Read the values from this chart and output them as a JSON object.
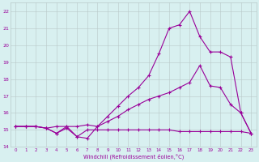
{
  "xlabel": "Windchill (Refroidissement éolien,°C)",
  "x": [
    0,
    1,
    2,
    3,
    4,
    5,
    6,
    7,
    8,
    9,
    10,
    11,
    12,
    13,
    14,
    15,
    16,
    17,
    18,
    19,
    20,
    21,
    22,
    23
  ],
  "line_flat": [
    15.2,
    15.2,
    15.2,
    15.1,
    14.8,
    15.1,
    14.6,
    15.0,
    15.0,
    15.0,
    15.0,
    15.0,
    15.0,
    15.0,
    15.0,
    15.0,
    14.9,
    14.9,
    14.9,
    14.9,
    14.9,
    14.9,
    14.9,
    14.8
  ],
  "line_mid": [
    15.2,
    15.2,
    15.2,
    15.1,
    15.2,
    15.2,
    15.2,
    15.3,
    15.2,
    15.5,
    15.8,
    16.2,
    16.5,
    16.8,
    17.0,
    17.2,
    17.5,
    17.8,
    18.8,
    17.6,
    17.5,
    16.5,
    16.0,
    14.8
  ],
  "line_peak": [
    15.2,
    15.2,
    15.2,
    15.1,
    14.8,
    15.2,
    14.6,
    14.5,
    15.2,
    15.8,
    16.4,
    17.0,
    17.5,
    18.2,
    19.5,
    21.0,
    21.2,
    22.0,
    20.5,
    19.6,
    19.6,
    19.3,
    16.0,
    14.8
  ],
  "line_color": "#990099",
  "bg_color": "#d8f0f0",
  "grid_color": "#b8c8c8",
  "ylim": [
    14,
    22.5
  ],
  "xlim": [
    -0.5,
    23.5
  ],
  "yticks": [
    14,
    15,
    16,
    17,
    18,
    19,
    20,
    21,
    22
  ],
  "xticks": [
    0,
    1,
    2,
    3,
    4,
    5,
    6,
    7,
    8,
    9,
    10,
    11,
    12,
    13,
    14,
    15,
    16,
    17,
    18,
    19,
    20,
    21,
    22,
    23
  ],
  "marker": "+",
  "markersize": 3,
  "linewidth": 0.8
}
